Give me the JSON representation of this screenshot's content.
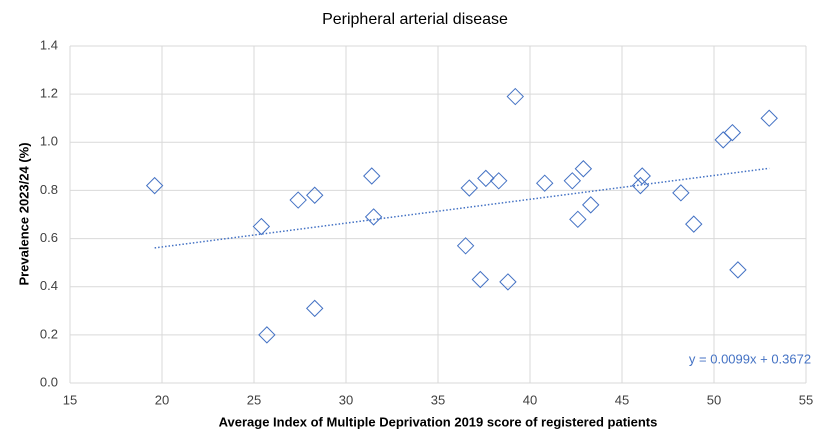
{
  "chart_data": {
    "type": "scatter",
    "title": "Peripheral arterial disease",
    "x_label": "Average Index of Multiple Deprivation 2019 score of registered patients",
    "y_label": "Prevalence 2023/24 (%)",
    "color": "#4472c4",
    "grid": true,
    "x": [
      19.6,
      25.4,
      25.7,
      27.4,
      28.3,
      28.3,
      31.4,
      31.5,
      36.5,
      36.7,
      37.3,
      37.6,
      38.3,
      38.8,
      39.2,
      40.8,
      42.3,
      42.6,
      42.9,
      43.3,
      46.0,
      46.1,
      48.2,
      48.9,
      50.5,
      51.0,
      51.3,
      53.0
    ],
    "values": [
      0.82,
      0.65,
      0.2,
      0.76,
      0.78,
      0.31,
      0.86,
      0.69,
      0.57,
      0.81,
      0.43,
      0.85,
      0.84,
      0.42,
      1.19,
      0.83,
      0.84,
      0.68,
      0.89,
      0.74,
      0.82,
      0.86,
      0.79,
      0.66,
      1.01,
      1.04,
      0.47,
      1.1
    ],
    "trendline": {
      "slope": 0.0099,
      "intercept": 0.3672,
      "label": "y = 0.0099x + 0.3672"
    },
    "xlim": [
      15,
      55
    ],
    "xticks": [
      15,
      20,
      25,
      30,
      35,
      40,
      45,
      50,
      55
    ],
    "ylim": [
      0,
      1.4
    ],
    "yticks": [
      {
        "value": 0,
        "label": "0.0"
      },
      {
        "value": 0.2,
        "label": "0.2"
      },
      {
        "value": 0.4,
        "label": "0.4"
      },
      {
        "value": 0.6,
        "label": "0.6"
      },
      {
        "value": 0.8,
        "label": "0.8"
      },
      {
        "value": 1.0,
        "label": "1.0"
      },
      {
        "value": 1.2,
        "label": "1.2"
      },
      {
        "value": 1.4,
        "label": "1.4"
      }
    ]
  }
}
